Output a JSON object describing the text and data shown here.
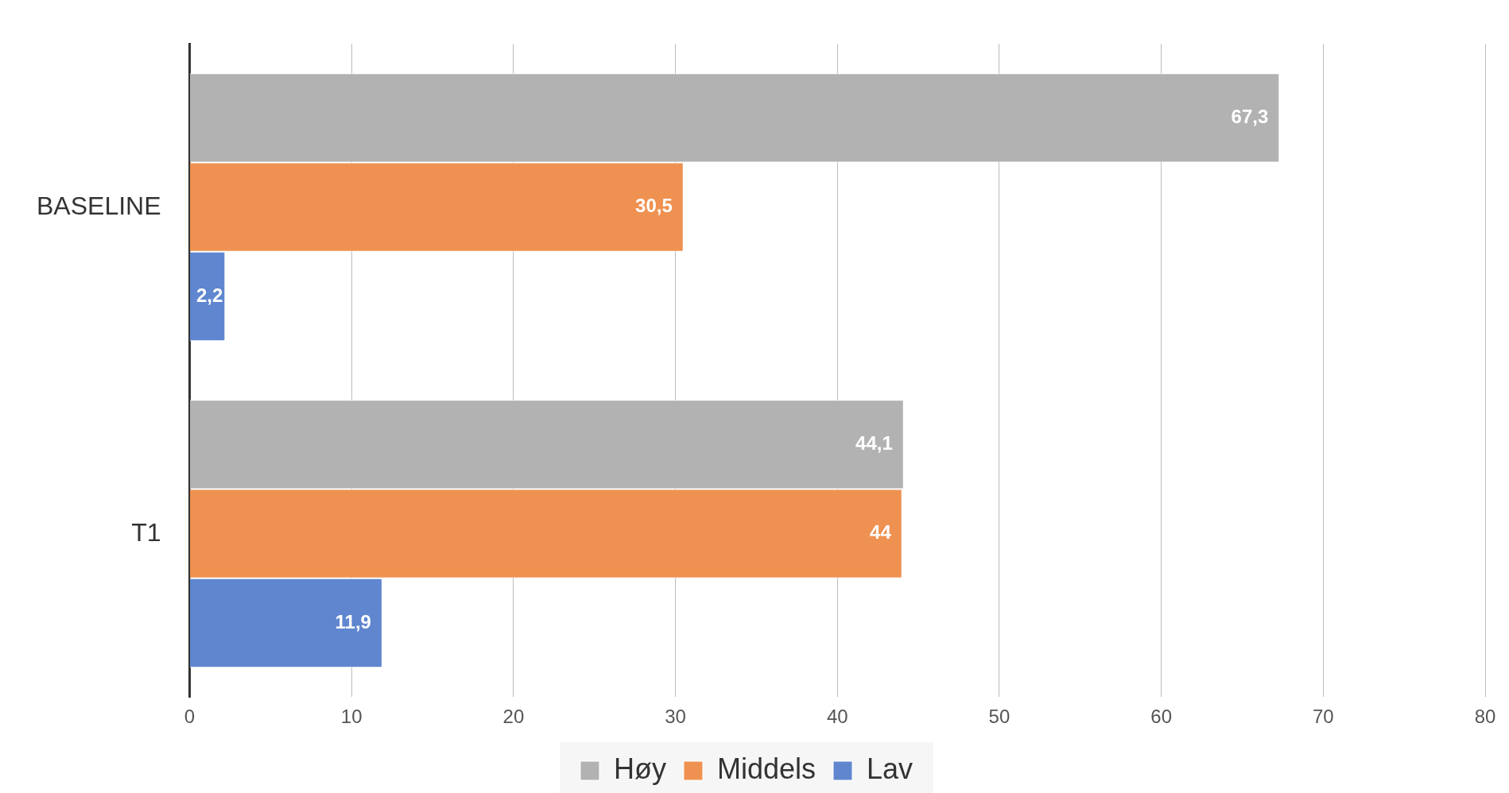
{
  "chart_data": {
    "type": "bar",
    "orientation": "horizontal",
    "categories": [
      "BASELINE",
      "T1"
    ],
    "series": [
      {
        "name": "Høy",
        "color": "#b2b2b2",
        "values": [
          67.3,
          44.1
        ],
        "value_labels": [
          "67,3",
          "44,1"
        ]
      },
      {
        "name": "Middels",
        "color": "#ef9150",
        "values": [
          30.5,
          44
        ],
        "value_labels": [
          "30,5",
          "44"
        ]
      },
      {
        "name": "Lav",
        "color": "#5f86cf",
        "values": [
          2.2,
          11.9
        ],
        "value_labels": [
          "2,2",
          "11,9"
        ]
      }
    ],
    "xlim": [
      0,
      80
    ],
    "xticks": [
      0,
      10,
      20,
      30,
      40,
      50,
      60,
      70,
      80
    ],
    "grid": "x",
    "legend": "bottom"
  }
}
